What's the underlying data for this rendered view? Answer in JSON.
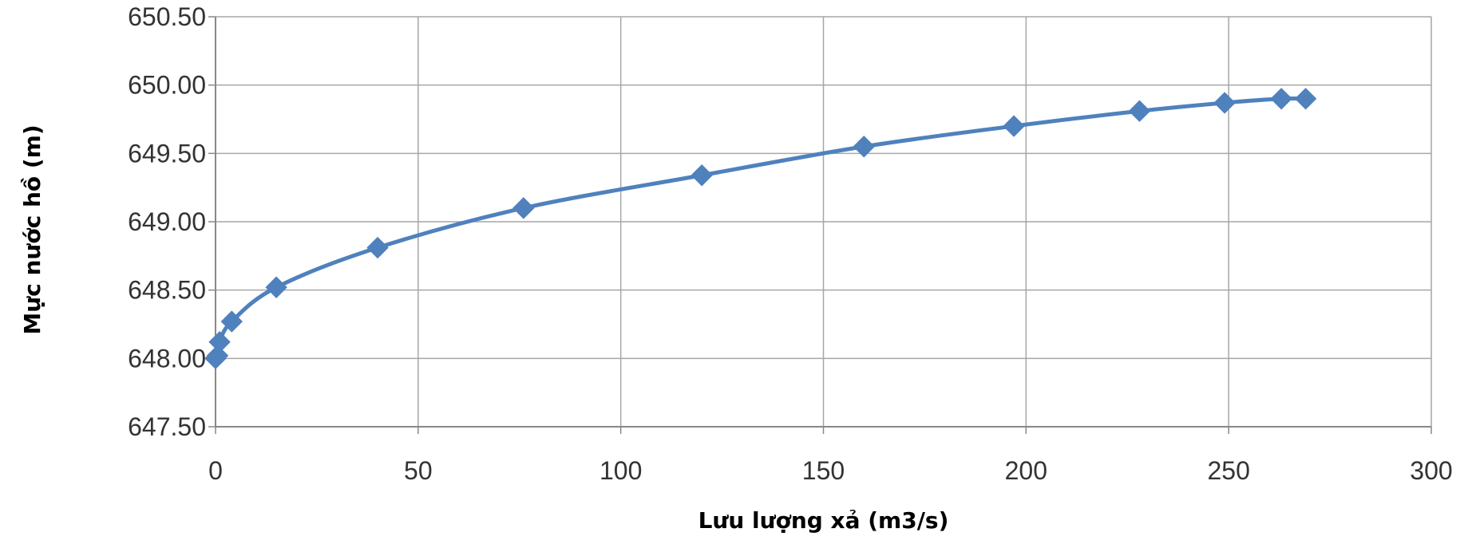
{
  "chart_data": {
    "type": "scatter",
    "title": "",
    "xlabel": "Lưu lượng xả (m3/s)",
    "ylabel": "Mực nước hồ (m)",
    "xlim": [
      0,
      300
    ],
    "ylim": [
      647.5,
      650.5
    ],
    "x_ticks": [
      "0",
      "50",
      "100",
      "150",
      "200",
      "250",
      "300"
    ],
    "y_ticks": [
      "647.50",
      "648.00",
      "648.50",
      "649.00",
      "649.50",
      "650.00",
      "650.50"
    ],
    "grid": true,
    "legend": "none",
    "marker": "diamond",
    "line_style": "smoothed",
    "colors": {
      "series": "#4f81bd",
      "grid": "#a6a6a6",
      "axis": "#888888"
    },
    "series": [
      {
        "x": [
          0,
          0.5,
          1,
          4,
          15,
          40,
          76,
          120,
          160,
          197,
          228,
          249,
          263,
          269
        ],
        "y": [
          648.0,
          648.02,
          648.12,
          648.27,
          648.52,
          648.81,
          649.1,
          649.34,
          649.55,
          649.7,
          649.81,
          649.87,
          649.9,
          649.9
        ]
      }
    ]
  }
}
